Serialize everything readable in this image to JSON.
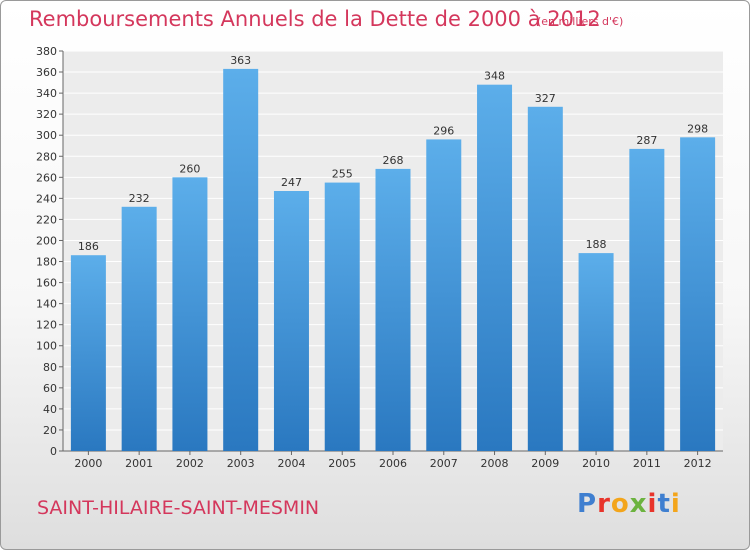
{
  "chart_data": {
    "type": "bar",
    "title": "Remboursements Annuels de la Dette de 2000 à 2012",
    "subtitle": "(en milliers d'€)",
    "categories": [
      "2000",
      "2001",
      "2002",
      "2003",
      "2004",
      "2005",
      "2006",
      "2007",
      "2008",
      "2009",
      "2010",
      "2011",
      "2012"
    ],
    "values": [
      186,
      232,
      260,
      363,
      247,
      255,
      268,
      296,
      348,
      327,
      188,
      287,
      298
    ],
    "ylim": [
      0,
      380
    ],
    "ytick_step": 20,
    "grid": true,
    "bar_color": "#3d8fd6"
  },
  "footer": {
    "location": "SAINT-HILAIRE-SAINT-MESMIN",
    "logo": [
      "P",
      "r",
      "o",
      "x",
      "i",
      "t",
      "i"
    ],
    "logo_colors": [
      "#3f7fd0",
      "#e8342b",
      "#f3a51b",
      "#6cb33f",
      "#e8342b",
      "#3f7fd0",
      "#f3a51b"
    ]
  }
}
